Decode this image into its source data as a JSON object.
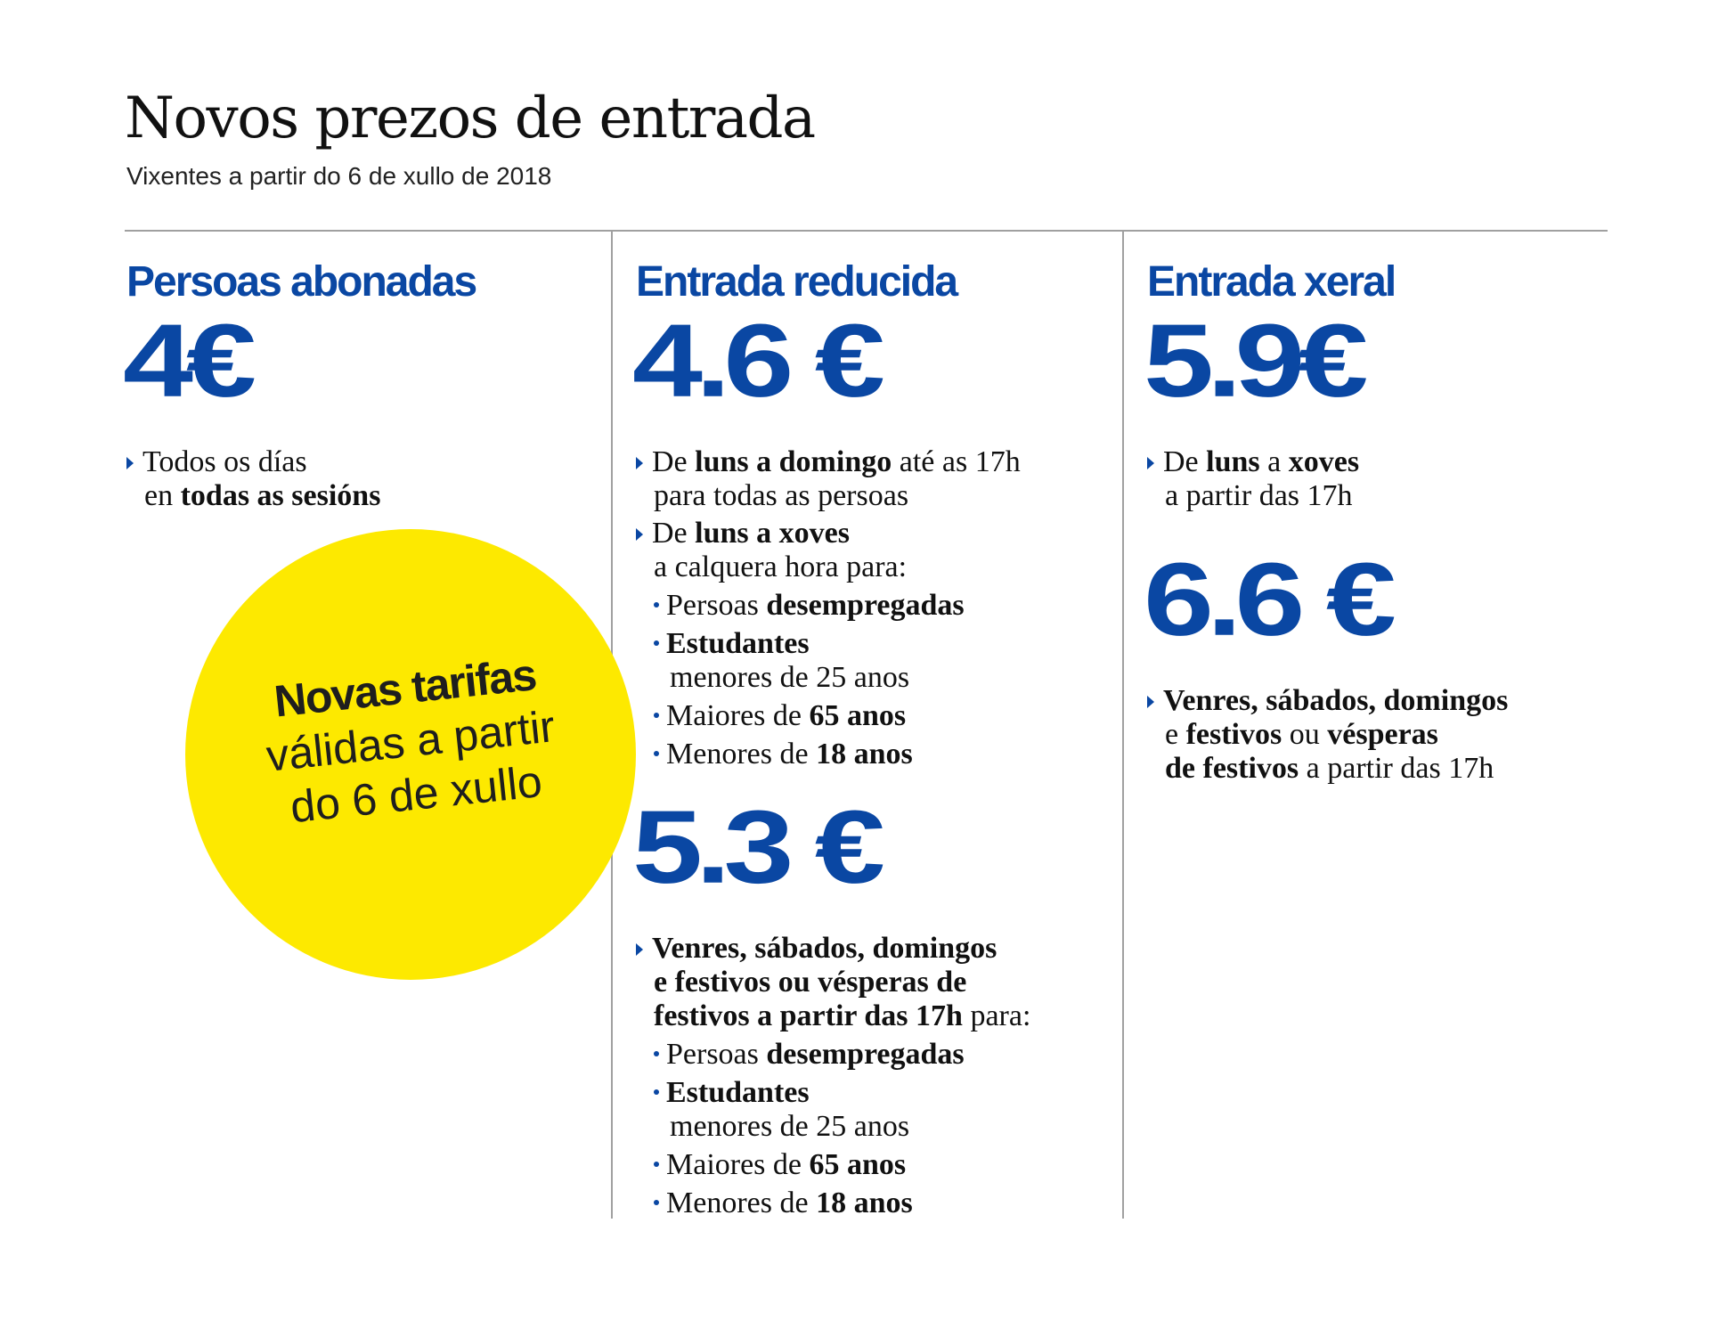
{
  "title": "Novos prezos de entrada",
  "subtitle": "Vixentes a partir do 6 de xullo de 2018",
  "col1": {
    "heading": "Persoas abonadas",
    "price": "4€",
    "note_l1a": "Todos os días",
    "note_l2a": "en ",
    "note_l2b": "todas as sesións"
  },
  "col2": {
    "heading": "Entrada reducida",
    "price1": "4.6 €",
    "n1_l1a": "De ",
    "n1_l1b": "luns a domingo",
    "n1_l1c": " até as 17h",
    "n1_l2": "para todas as persoas",
    "n2_l1a": "De ",
    "n2_l1b": "luns a xoves",
    "n2_l2": "a calquera hora para:",
    "b1a": "Persoas ",
    "b1b": "desempregadas",
    "b2a": "Estudantes",
    "b2b": "menores de 25 anos",
    "b3a": "Maiores de ",
    "b3b": "65 anos",
    "b4a": "Menores de ",
    "b4b": "18 anos",
    "price2": "5.3 €",
    "n3_l1": "Venres, sábados, domingos",
    "n3_l2": "e festivos ou vésperas de",
    "n3_l3a": "festivos a partir das 17h",
    "n3_l3b": " para:",
    "c1a": "Persoas ",
    "c1b": "desempregadas",
    "c2a": "Estudantes",
    "c2b": "menores de 25 anos",
    "c3a": "Maiores de ",
    "c3b": "65 anos",
    "c4a": "Menores de ",
    "c4b": "18 anos"
  },
  "col3": {
    "heading": "Entrada xeral",
    "price1": "5.9€",
    "n1_l1a": "De ",
    "n1_l1b": "luns",
    "n1_l1c": " a ",
    "n1_l1d": "xoves",
    "n1_l2": "a partir das 17h",
    "price2": "6.6 €",
    "n2_l1": "Venres, sábados, domingos",
    "n2_l2a": "e ",
    "n2_l2b": "festivos",
    "n2_l2c": " ou ",
    "n2_l2d": "vésperas",
    "n2_l3a": "de festivos",
    "n2_l3b": " a partir das 17h"
  },
  "badge": {
    "strong": "Novas tarifas",
    "line2": "válidas a partir",
    "line3": "do 6 de xullo"
  },
  "colors": {
    "accent_blue": "#0a47a3",
    "badge_yellow": "#fde900",
    "rule_gray": "#a0a0a0"
  }
}
